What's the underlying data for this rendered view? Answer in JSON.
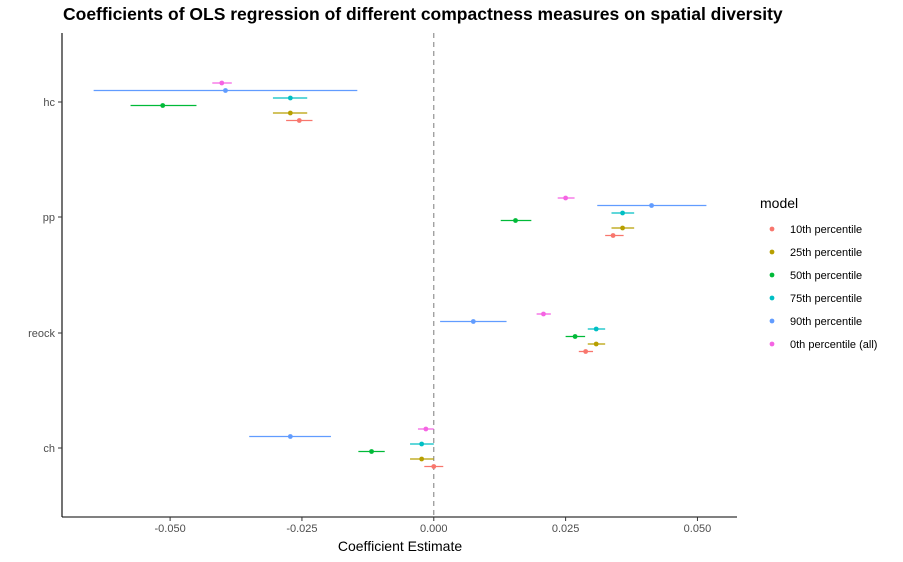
{
  "chart_data": {
    "type": "scatter",
    "title": "Coefficients of OLS regression of different compactness measures on spatial diversity",
    "xlabel": "Coefficient Estimate",
    "ylabel": "",
    "xlim": [
      -0.0705,
      0.0575
    ],
    "x_ticks": [
      -0.05,
      -0.025,
      0.0,
      0.025,
      0.05
    ],
    "x_tick_labels": [
      "-0.050",
      "-0.025",
      "0.000",
      "0.025",
      "0.050"
    ],
    "categories": [
      "hc",
      "pp",
      "reock",
      "ch"
    ],
    "reference_line": 0,
    "grid": false,
    "legend": {
      "title": "model",
      "position": "right"
    },
    "series": [
      {
        "name": "10th percentile",
        "color": "#F8766D",
        "points": [
          {
            "category": "hc",
            "x": -0.0255,
            "lo": -0.028,
            "hi": -0.023
          },
          {
            "category": "pp",
            "x": 0.034,
            "lo": 0.0325,
            "hi": 0.036
          },
          {
            "category": "reock",
            "x": 0.0288,
            "lo": 0.0275,
            "hi": 0.0302
          },
          {
            "category": "ch",
            "x": 0.0,
            "lo": -0.0018,
            "hi": 0.0018
          }
        ]
      },
      {
        "name": "25th percentile",
        "color": "#B79F00",
        "points": [
          {
            "category": "hc",
            "x": -0.0272,
            "lo": -0.0305,
            "hi": -0.024
          },
          {
            "category": "pp",
            "x": 0.0358,
            "lo": 0.0337,
            "hi": 0.038
          },
          {
            "category": "reock",
            "x": 0.0308,
            "lo": 0.0292,
            "hi": 0.0325
          },
          {
            "category": "ch",
            "x": -0.0023,
            "lo": -0.0045,
            "hi": 0.0
          }
        ]
      },
      {
        "name": "50th percentile",
        "color": "#00BA38",
        "points": [
          {
            "category": "hc",
            "x": -0.0514,
            "lo": -0.0575,
            "hi": -0.045
          },
          {
            "category": "pp",
            "x": 0.0155,
            "lo": 0.0127,
            "hi": 0.0185
          },
          {
            "category": "reock",
            "x": 0.0268,
            "lo": 0.025,
            "hi": 0.0287
          },
          {
            "category": "ch",
            "x": -0.0118,
            "lo": -0.0143,
            "hi": -0.0093
          }
        ]
      },
      {
        "name": "75th percentile",
        "color": "#00BFC4",
        "points": [
          {
            "category": "hc",
            "x": -0.0272,
            "lo": -0.0305,
            "hi": -0.024
          },
          {
            "category": "pp",
            "x": 0.0358,
            "lo": 0.0337,
            "hi": 0.038
          },
          {
            "category": "reock",
            "x": 0.0308,
            "lo": 0.0292,
            "hi": 0.0325
          },
          {
            "category": "ch",
            "x": -0.0023,
            "lo": -0.0045,
            "hi": 0.0
          }
        ]
      },
      {
        "name": "90th percentile",
        "color": "#619CFF",
        "points": [
          {
            "category": "hc",
            "x": -0.0395,
            "lo": -0.0645,
            "hi": -0.0145
          },
          {
            "category": "pp",
            "x": 0.0413,
            "lo": 0.031,
            "hi": 0.0517
          },
          {
            "category": "reock",
            "x": 0.0075,
            "lo": 0.0012,
            "hi": 0.0138
          },
          {
            "category": "ch",
            "x": -0.0272,
            "lo": -0.035,
            "hi": -0.0195
          }
        ]
      },
      {
        "name": "0th percentile (all)",
        "color": "#F564E3",
        "points": [
          {
            "category": "hc",
            "x": -0.0402,
            "lo": -0.042,
            "hi": -0.0383
          },
          {
            "category": "pp",
            "x": 0.025,
            "lo": 0.0235,
            "hi": 0.0267
          },
          {
            "category": "reock",
            "x": 0.0208,
            "lo": 0.0195,
            "hi": 0.0222
          },
          {
            "category": "ch",
            "x": -0.0015,
            "lo": -0.003,
            "hi": 0.0
          }
        ]
      }
    ]
  }
}
